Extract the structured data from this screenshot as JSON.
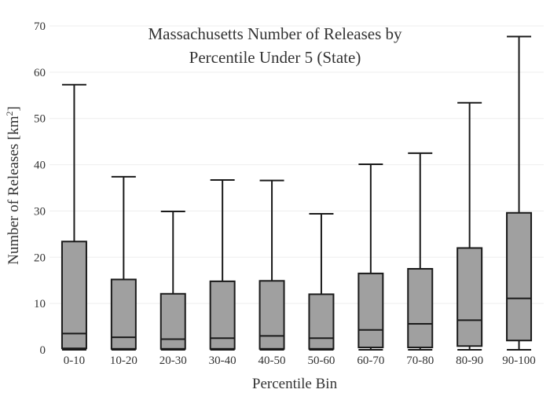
{
  "chart_data": {
    "type": "box",
    "title_line1": "Massachusetts Number of Releases by",
    "title_line2": "Percentile Under 5 (State)",
    "xlabel": "Percentile Bin",
    "ylabel_main": "Number of Releases  [km",
    "ylabel_sup": "2",
    "ylabel_close": "]",
    "ylim": [
      0,
      70
    ],
    "yticks": [
      0,
      10,
      20,
      30,
      40,
      50,
      60,
      70
    ],
    "grid": true,
    "categories": [
      "0-10",
      "10-20",
      "20-30",
      "30-40",
      "40-50",
      "50-60",
      "60-70",
      "70-80",
      "80-90",
      "90-100"
    ],
    "boxes": [
      {
        "min": 0,
        "q1": 0.3,
        "median": 3.5,
        "q3": 23.4,
        "max": 57.3
      },
      {
        "min": 0,
        "q1": 0.2,
        "median": 2.7,
        "q3": 15.2,
        "max": 37.4
      },
      {
        "min": 0,
        "q1": 0.2,
        "median": 2.3,
        "q3": 12.1,
        "max": 29.9
      },
      {
        "min": 0,
        "q1": 0.2,
        "median": 2.5,
        "q3": 14.8,
        "max": 36.7
      },
      {
        "min": 0,
        "q1": 0.2,
        "median": 3.0,
        "q3": 14.9,
        "max": 36.6
      },
      {
        "min": 0,
        "q1": 0.2,
        "median": 2.5,
        "q3": 12.0,
        "max": 29.4
      },
      {
        "min": 0,
        "q1": 0.5,
        "median": 4.3,
        "q3": 16.5,
        "max": 40.1
      },
      {
        "min": 0,
        "q1": 0.5,
        "median": 5.6,
        "q3": 17.5,
        "max": 42.5
      },
      {
        "min": 0,
        "q1": 0.8,
        "median": 6.4,
        "q3": 22.0,
        "max": 53.4
      },
      {
        "min": 0,
        "q1": 2.0,
        "median": 11.1,
        "q3": 29.6,
        "max": 67.7
      }
    ]
  }
}
